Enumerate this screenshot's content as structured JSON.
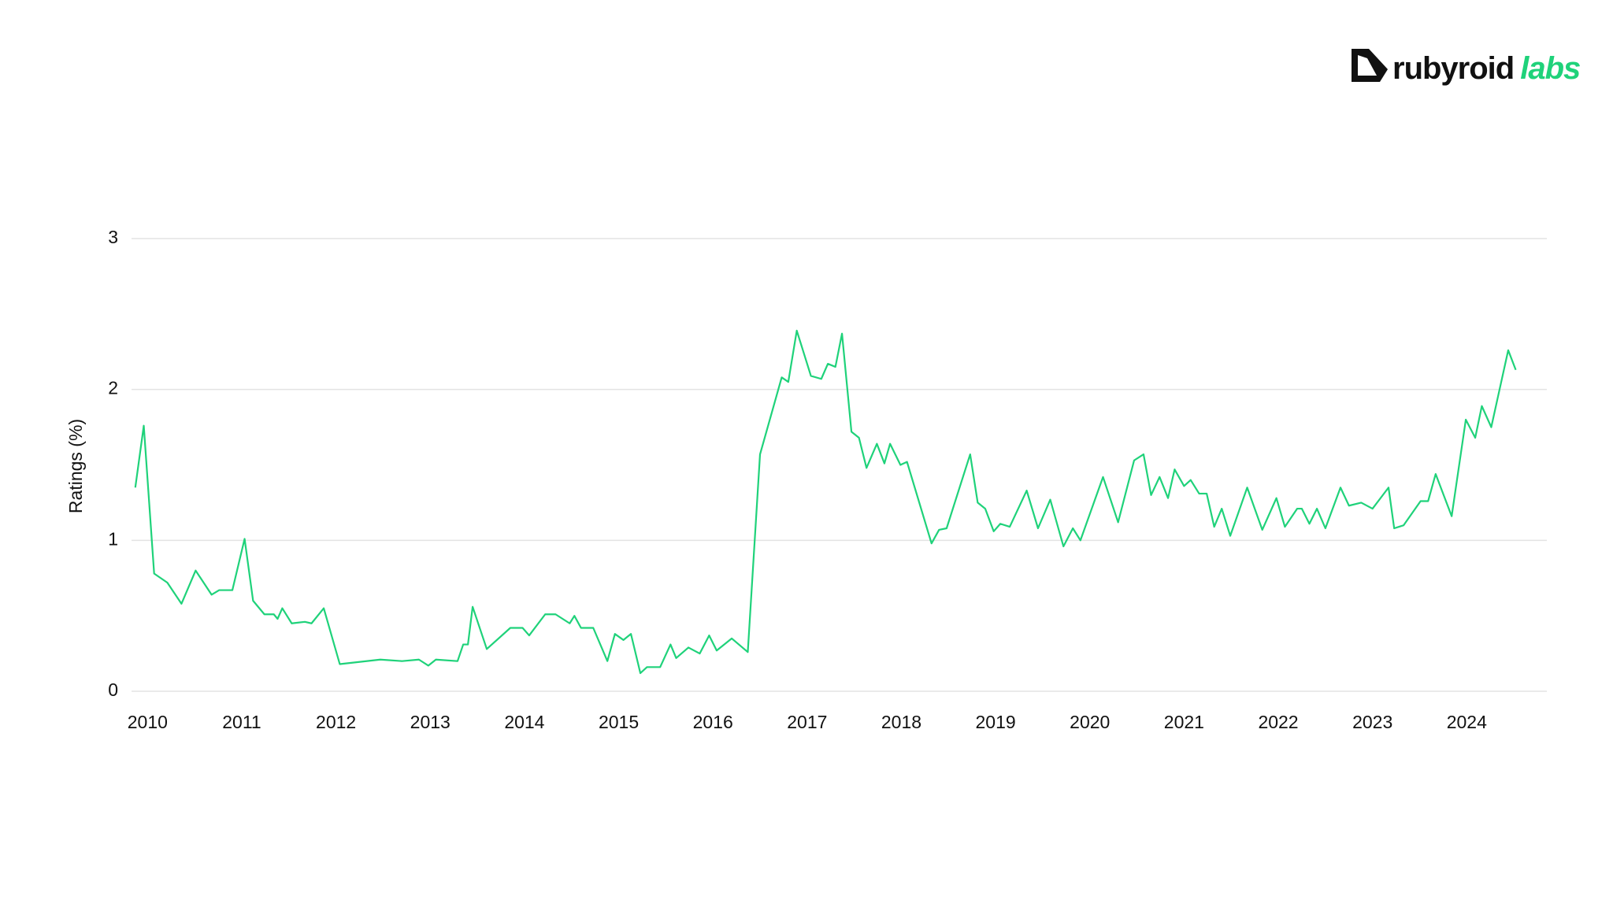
{
  "logo": {
    "name": "rubyroid",
    "suffix": "labs"
  },
  "chart_data": {
    "type": "line",
    "y_label": "Ratings (%)",
    "xlim": [
      2009.83,
      2024.85
    ],
    "xticks": [
      2010,
      2011,
      2012,
      2013,
      2014,
      2015,
      2016,
      2017,
      2018,
      2019,
      2020,
      2021,
      2022,
      2023,
      2024
    ],
    "ylim": [
      0,
      3
    ],
    "yticks": [
      0,
      1,
      2,
      3
    ],
    "grid": true,
    "x": [
      2009.87,
      2009.96,
      2010.07,
      2010.21,
      2010.36,
      2010.51,
      2010.68,
      2010.76,
      2010.9,
      2011.03,
      2011.12,
      2011.24,
      2011.34,
      2011.38,
      2011.43,
      2011.53,
      2011.67,
      2011.74,
      2011.87,
      2012.04,
      2012.47,
      2012.7,
      2012.88,
      2012.98,
      2013.06,
      2013.29,
      2013.35,
      2013.4,
      2013.45,
      2013.6,
      2013.85,
      2013.98,
      2014.05,
      2014.22,
      2014.33,
      2014.48,
      2014.53,
      2014.6,
      2014.73,
      2014.88,
      2014.96,
      2015.05,
      2015.13,
      2015.23,
      2015.3,
      2015.44,
      2015.55,
      2015.61,
      2015.74,
      2015.86,
      2015.96,
      2016.04,
      2016.2,
      2016.37,
      2016.5,
      2016.73,
      2016.8,
      2016.89,
      2017.04,
      2017.15,
      2017.22,
      2017.3,
      2017.37,
      2017.47,
      2017.55,
      2017.63,
      2017.74,
      2017.82,
      2017.88,
      2017.99,
      2018.06,
      2018.32,
      2018.4,
      2018.48,
      2018.73,
      2018.81,
      2018.89,
      2018.98,
      2019.05,
      2019.15,
      2019.33,
      2019.45,
      2019.58,
      2019.72,
      2019.82,
      2019.9,
      2020.14,
      2020.3,
      2020.47,
      2020.57,
      2020.65,
      2020.74,
      2020.83,
      2020.9,
      2021.0,
      2021.07,
      2021.16,
      2021.24,
      2021.32,
      2021.4,
      2021.49,
      2021.67,
      2021.83,
      2021.98,
      2022.07,
      2022.2,
      2022.25,
      2022.33,
      2022.41,
      2022.5,
      2022.66,
      2022.75,
      2022.88,
      2023.0,
      2023.17,
      2023.23,
      2023.33,
      2023.51,
      2023.59,
      2023.67,
      2023.84,
      2023.99,
      2024.09,
      2024.16,
      2024.26,
      2024.44,
      2024.52
    ],
    "series": [
      {
        "color": "#1fd27a",
        "values": [
          1.35,
          1.76,
          0.78,
          0.72,
          0.58,
          0.8,
          0.64,
          0.67,
          0.67,
          1.01,
          0.6,
          0.51,
          0.51,
          0.48,
          0.55,
          0.45,
          0.46,
          0.45,
          0.55,
          0.18,
          0.21,
          0.2,
          0.21,
          0.17,
          0.21,
          0.2,
          0.31,
          0.31,
          0.56,
          0.28,
          0.42,
          0.42,
          0.37,
          0.51,
          0.51,
          0.45,
          0.5,
          0.42,
          0.42,
          0.2,
          0.38,
          0.34,
          0.38,
          0.12,
          0.16,
          0.16,
          0.31,
          0.22,
          0.29,
          0.25,
          0.37,
          0.27,
          0.35,
          0.26,
          1.57,
          2.08,
          2.05,
          2.39,
          2.09,
          2.07,
          2.17,
          2.15,
          2.37,
          1.72,
          1.68,
          1.48,
          1.64,
          1.51,
          1.64,
          1.5,
          1.52,
          0.98,
          1.07,
          1.08,
          1.57,
          1.25,
          1.21,
          1.06,
          1.11,
          1.09,
          1.33,
          1.08,
          1.27,
          0.96,
          1.08,
          1.0,
          1.42,
          1.12,
          1.53,
          1.57,
          1.3,
          1.42,
          1.28,
          1.47,
          1.36,
          1.4,
          1.31,
          1.31,
          1.09,
          1.21,
          1.03,
          1.35,
          1.07,
          1.28,
          1.09,
          1.21,
          1.21,
          1.11,
          1.21,
          1.08,
          1.35,
          1.23,
          1.25,
          1.21,
          1.35,
          1.08,
          1.1,
          1.26,
          1.26,
          1.44,
          1.16,
          1.8,
          1.68,
          1.89,
          1.75,
          2.26,
          2.13
        ]
      }
    ]
  }
}
